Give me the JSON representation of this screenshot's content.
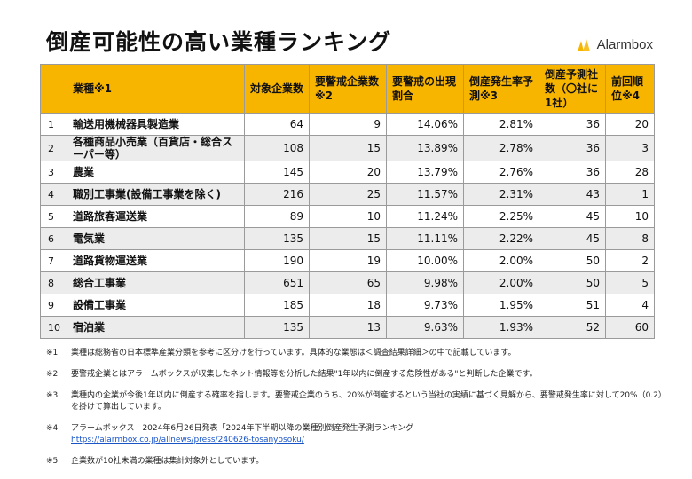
{
  "title": "倒産可能性の高い業種ランキング",
  "brand": {
    "name": "Alarmbox",
    "accent": "#f8b500"
  },
  "table": {
    "header_color": "#f8b500",
    "headers": [
      "",
      "業種※1",
      "対象企業数",
      "要警戒企業数※2",
      "要警戒の出現割合",
      "倒産発生率予測※3",
      "倒産予測社数（〇社に1社）",
      "前回順位※4"
    ],
    "rows": [
      {
        "rank": "1",
        "industry": "輸送用機械器具製造業",
        "companies": "64",
        "alert": "9",
        "ratio": "14.06%",
        "rate": "2.81%",
        "one_in": "36",
        "prev": "20"
      },
      {
        "rank": "2",
        "industry": "各種商品小売業（百貨店・総合スーパー等）",
        "companies": "108",
        "alert": "15",
        "ratio": "13.89%",
        "rate": "2.78%",
        "one_in": "36",
        "prev": "3"
      },
      {
        "rank": "3",
        "industry": "農業",
        "companies": "145",
        "alert": "20",
        "ratio": "13.79%",
        "rate": "2.76%",
        "one_in": "36",
        "prev": "28"
      },
      {
        "rank": "4",
        "industry": "職別工事業(設備工事業を除く)",
        "companies": "216",
        "alert": "25",
        "ratio": "11.57%",
        "rate": "2.31%",
        "one_in": "43",
        "prev": "1"
      },
      {
        "rank": "5",
        "industry": "道路旅客運送業",
        "companies": "89",
        "alert": "10",
        "ratio": "11.24%",
        "rate": "2.25%",
        "one_in": "45",
        "prev": "10"
      },
      {
        "rank": "6",
        "industry": "電気業",
        "companies": "135",
        "alert": "15",
        "ratio": "11.11%",
        "rate": "2.22%",
        "one_in": "45",
        "prev": "8"
      },
      {
        "rank": "7",
        "industry": "道路貨物運送業",
        "companies": "190",
        "alert": "19",
        "ratio": "10.00%",
        "rate": "2.00%",
        "one_in": "50",
        "prev": "2"
      },
      {
        "rank": "8",
        "industry": "総合工事業",
        "companies": "651",
        "alert": "65",
        "ratio": "9.98%",
        "rate": "2.00%",
        "one_in": "50",
        "prev": "5"
      },
      {
        "rank": "9",
        "industry": "設備工事業",
        "companies": "185",
        "alert": "18",
        "ratio": "9.73%",
        "rate": "1.95%",
        "one_in": "51",
        "prev": "4"
      },
      {
        "rank": "10",
        "industry": "宿泊業",
        "companies": "135",
        "alert": "13",
        "ratio": "9.63%",
        "rate": "1.93%",
        "one_in": "52",
        "prev": "60"
      }
    ]
  },
  "notes": [
    {
      "mark": "※1",
      "text": "業種は総務省の日本標準産業分類を参考に区分けを行っています。具体的な業態は＜調査結果詳細＞の中で記載しています。"
    },
    {
      "mark": "※2",
      "text": "要警戒企業とはアラームボックスが収集したネット情報等を分析した結果\"1年以内に倒産する危険性がある\"と判断した企業です。"
    },
    {
      "mark": "※3",
      "text": "業種内の企業が今後1年以内に倒産する確率を指します。要警戒企業のうち、20%が倒産するという当社の実績に基づく見解から、要警戒発生率に対して20%（0.2）を掛けて算出しています。"
    },
    {
      "mark": "※4",
      "text": "アラームボックス　2024年6月26日発表「2024年下半期以降の業種別倒産発生予測ランキング",
      "link": "https://alarmbox.co.jp/allnews/press/240626-tosanyosoku/"
    },
    {
      "mark": "※5",
      "text": "企業数が10社未満の業種は集計対象外としています。"
    }
  ]
}
